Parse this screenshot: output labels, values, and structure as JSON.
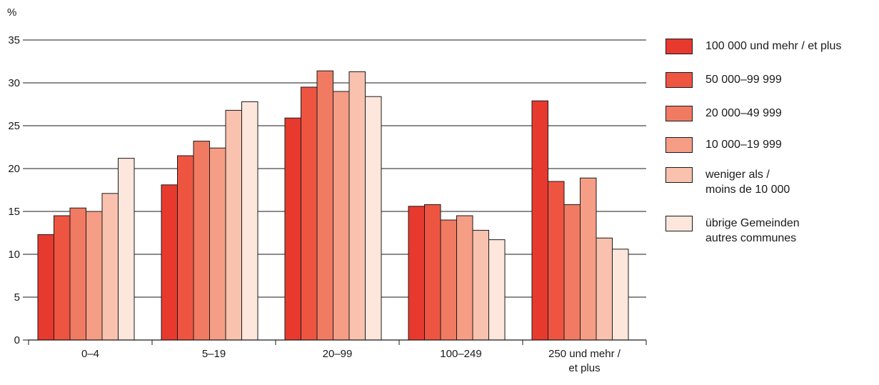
{
  "chart_data": {
    "type": "bar",
    "ylabel": "%",
    "xlabel": "",
    "ylim": [
      0,
      35
    ],
    "yticks": [
      0,
      5,
      10,
      15,
      20,
      25,
      30,
      35
    ],
    "grid": true,
    "legend_position": "right",
    "categories": [
      "0–4",
      "5–19",
      "20–99",
      "100–249",
      "250 und mehr /\net plus"
    ],
    "series": [
      {
        "name": "100 000 und mehr / et plus",
        "color": "#e8392f",
        "values": [
          12.3,
          18.1,
          25.9,
          15.6,
          27.9
        ]
      },
      {
        "name": "50 000–99 999",
        "color": "#ee5541",
        "values": [
          14.5,
          21.5,
          29.5,
          15.8,
          18.5
        ]
      },
      {
        "name": "20 000–49 999",
        "color": "#f17b62",
        "values": [
          15.4,
          23.2,
          31.4,
          14.0,
          15.8
        ]
      },
      {
        "name": "10 000–19 999",
        "color": "#f59e85",
        "values": [
          15.0,
          22.4,
          29.0,
          14.5,
          18.9
        ]
      },
      {
        "name": "weniger als /\nmoins de 10 000",
        "color": "#f9c2ae",
        "values": [
          17.1,
          26.8,
          31.3,
          12.8,
          11.9
        ]
      },
      {
        "name": "übrige Gemeinden\nautres communes",
        "color": "#fde6dc",
        "values": [
          21.2,
          27.8,
          28.4,
          11.7,
          10.6
        ]
      }
    ]
  }
}
